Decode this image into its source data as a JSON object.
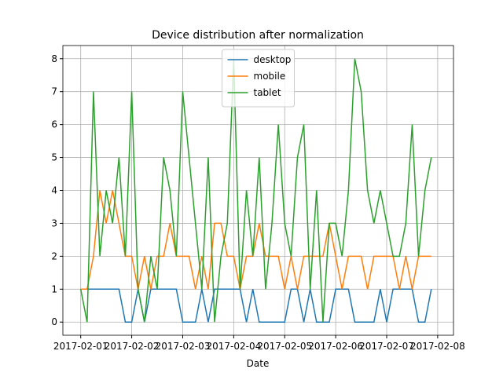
{
  "chart_data": {
    "type": "line",
    "title": "Device distribution after normalization",
    "xlabel": "Date",
    "x": [
      0,
      0.125,
      0.25,
      0.375,
      0.5,
      0.625,
      0.75,
      0.875,
      1,
      1.125,
      1.25,
      1.375,
      1.5,
      1.625,
      1.75,
      1.875,
      2,
      2.125,
      2.25,
      2.375,
      2.5,
      2.625,
      2.75,
      2.875,
      3,
      3.125,
      3.25,
      3.375,
      3.5,
      3.625,
      3.75,
      3.875,
      4,
      4.125,
      4.25,
      4.375,
      4.5,
      4.625,
      4.75,
      4.875,
      5,
      5.125,
      5.25,
      5.375,
      5.5,
      5.625,
      5.75,
      5.875,
      6,
      6.125,
      6.25,
      6.375,
      6.5,
      6.625,
      6.75,
      6.875
    ],
    "series": [
      {
        "name": "desktop",
        "color": "#1f77b4",
        "values": [
          1,
          1,
          1,
          1,
          1,
          1,
          1,
          0,
          0,
          1,
          0,
          1,
          1,
          1,
          1,
          1,
          0,
          0,
          0,
          1,
          0,
          1,
          1,
          1,
          1,
          1,
          0,
          1,
          0,
          0,
          0,
          0,
          0,
          1,
          1,
          0,
          1,
          0,
          0,
          0,
          1,
          1,
          1,
          0,
          0,
          0,
          0,
          1,
          0,
          1,
          1,
          1,
          1,
          0,
          0,
          1
        ]
      },
      {
        "name": "mobile",
        "color": "#ff7f0e",
        "values": [
          1,
          1,
          2,
          4,
          3,
          4,
          3,
          2,
          2,
          1,
          2,
          1,
          2,
          2,
          3,
          2,
          2,
          2,
          1,
          2,
          1,
          3,
          3,
          2,
          2,
          1,
          2,
          2,
          3,
          2,
          2,
          2,
          1,
          2,
          1,
          2,
          2,
          2,
          2,
          3,
          2,
          1,
          2,
          2,
          2,
          1,
          2,
          2,
          2,
          2,
          1,
          2,
          1,
          2,
          2,
          2
        ]
      },
      {
        "name": "tablet",
        "color": "#2ca02c",
        "values": [
          1,
          0,
          7,
          2,
          4,
          3,
          5,
          2,
          7,
          1,
          0,
          2,
          1,
          5,
          4,
          2,
          7,
          5,
          3,
          1,
          5,
          0,
          2,
          3,
          8,
          1,
          4,
          2,
          5,
          1,
          3,
          6,
          3,
          2,
          5,
          6,
          1,
          4,
          0,
          3,
          3,
          2,
          4,
          8,
          7,
          4,
          3,
          4,
          3,
          2,
          2,
          3,
          6,
          2,
          4,
          5
        ]
      }
    ],
    "xlim": [
      -0.35,
      7.31
    ],
    "xticks": [
      {
        "value": 0,
        "label": "2017-02-01"
      },
      {
        "value": 1,
        "label": "2017-02-02"
      },
      {
        "value": 2,
        "label": "2017-02-03"
      },
      {
        "value": 3,
        "label": "2017-02-04"
      },
      {
        "value": 4,
        "label": "2017-02-05"
      },
      {
        "value": 5,
        "label": "2017-02-06"
      },
      {
        "value": 6,
        "label": "2017-02-07"
      },
      {
        "value": 7,
        "label": "2017-02-08"
      }
    ],
    "ylim": [
      -0.4,
      8.4
    ],
    "yticks": [
      0,
      1,
      2,
      3,
      4,
      5,
      6,
      7,
      8
    ],
    "grid": true,
    "legend": "upper center"
  }
}
